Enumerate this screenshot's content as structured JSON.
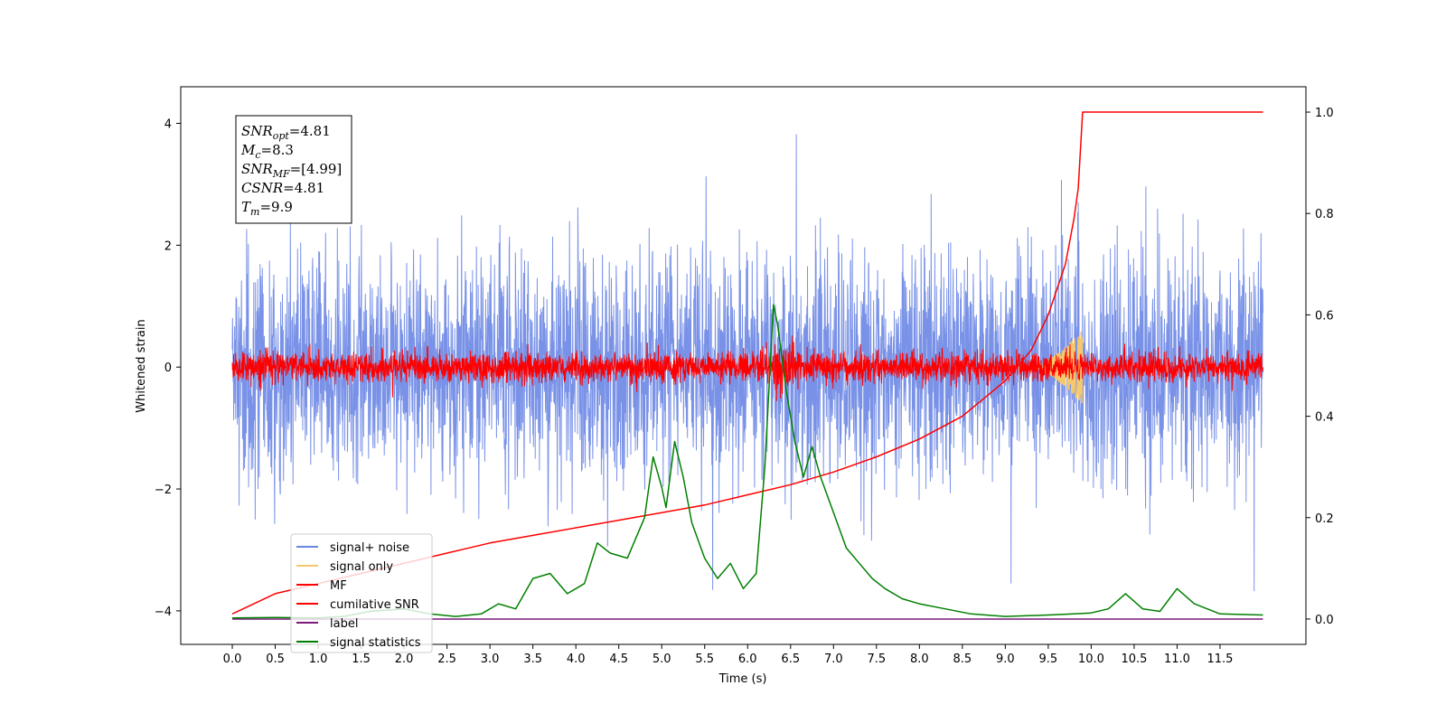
{
  "chart_data": {
    "type": "line",
    "xlabel": "Time (s)",
    "ylabel": "Whitened strain",
    "xlim": [
      -0.6,
      12.5
    ],
    "ylim": [
      -4.55,
      4.6
    ],
    "y2lim": [
      -0.05,
      1.05
    ],
    "x_ticks": [
      "0.0",
      "0.5",
      "1.0",
      "1.5",
      "2.0",
      "2.5",
      "3.0",
      "3.5",
      "4.0",
      "4.5",
      "5.0",
      "5.5",
      "6.0",
      "6.5",
      "7.0",
      "7.5",
      "8.0",
      "8.5",
      "9.0",
      "9.5",
      "10.0",
      "10.5",
      "11.0",
      "11.5"
    ],
    "y_ticks": [
      "−4",
      "−2",
      "0",
      "2",
      "4"
    ],
    "y2_ticks": [
      "0.0",
      "0.2",
      "0.4",
      "0.6",
      "0.8",
      "1.0"
    ],
    "grid": false,
    "legend_position": "lower-left",
    "annotation": {
      "lines": [
        {
          "var": "SNR",
          "sub": "opt",
          "value": "=4.81"
        },
        {
          "var": "M",
          "sub": "c",
          "value": "=8.3"
        },
        {
          "var": "SNR",
          "sub": "MF",
          "value": "=[4.99]"
        },
        {
          "var": "CSNR",
          "sub": "",
          "value": "=4.81"
        },
        {
          "var": "T",
          "sub": "m",
          "value": "=9.9"
        }
      ]
    },
    "series": [
      {
        "name": "signal+ noise",
        "color": "#6a86e4",
        "axis": "left",
        "kind": "noise",
        "envelope": [
          -2.4,
          2.4
        ],
        "t_range": [
          0.0,
          12.0
        ]
      },
      {
        "name": "signal only",
        "color": "#f5c86b",
        "axis": "left",
        "kind": "chirp",
        "t_range": [
          9.3,
          9.9
        ],
        "peak": 0.6
      },
      {
        "name": "MF",
        "color": "#ff0000",
        "axis": "left",
        "kind": "noise",
        "envelope": [
          -0.35,
          0.4
        ],
        "t_range": [
          0.0,
          12.0
        ]
      },
      {
        "name": "cumilative SNR",
        "color": "#ff0000",
        "axis": "right",
        "x": [
          0.0,
          0.5,
          1.0,
          1.5,
          2.0,
          2.5,
          3.0,
          3.5,
          4.0,
          4.5,
          5.0,
          5.5,
          6.0,
          6.5,
          7.0,
          7.5,
          8.0,
          8.5,
          9.0,
          9.3,
          9.5,
          9.7,
          9.8,
          9.85,
          9.9,
          12.0
        ],
        "values": [
          0.01,
          0.05,
          0.07,
          0.09,
          0.11,
          0.13,
          0.15,
          0.165,
          0.18,
          0.195,
          0.21,
          0.225,
          0.245,
          0.265,
          0.29,
          0.32,
          0.355,
          0.4,
          0.47,
          0.53,
          0.6,
          0.7,
          0.79,
          0.85,
          1.0,
          1.0
        ]
      },
      {
        "name": "label",
        "color": "#7b1a7b",
        "axis": "right",
        "x": [
          0.0,
          12.0
        ],
        "values": [
          0.0,
          0.0
        ]
      },
      {
        "name": "signal statistics",
        "color": "#008000",
        "axis": "right",
        "x": [
          0.0,
          0.5,
          1.0,
          1.3,
          1.6,
          2.0,
          2.3,
          2.6,
          2.9,
          3.1,
          3.3,
          3.5,
          3.7,
          3.9,
          4.1,
          4.25,
          4.4,
          4.6,
          4.8,
          4.9,
          5.0,
          5.05,
          5.15,
          5.25,
          5.35,
          5.5,
          5.65,
          5.8,
          5.95,
          6.1,
          6.2,
          6.3,
          6.35,
          6.45,
          6.55,
          6.65,
          6.75,
          6.85,
          7.0,
          7.15,
          7.3,
          7.45,
          7.6,
          7.8,
          8.0,
          8.3,
          8.6,
          9.0,
          9.5,
          9.8,
          10.0,
          10.2,
          10.4,
          10.6,
          10.8,
          11.0,
          11.2,
          11.5,
          12.0
        ],
        "values": [
          0.002,
          0.003,
          0.002,
          0.005,
          0.015,
          0.02,
          0.01,
          0.005,
          0.01,
          0.03,
          0.02,
          0.08,
          0.09,
          0.05,
          0.07,
          0.15,
          0.13,
          0.12,
          0.2,
          0.32,
          0.26,
          0.22,
          0.35,
          0.28,
          0.19,
          0.12,
          0.08,
          0.11,
          0.06,
          0.09,
          0.3,
          0.62,
          0.58,
          0.45,
          0.35,
          0.28,
          0.34,
          0.28,
          0.21,
          0.14,
          0.11,
          0.08,
          0.06,
          0.04,
          0.03,
          0.02,
          0.01,
          0.005,
          0.008,
          0.01,
          0.012,
          0.02,
          0.05,
          0.02,
          0.015,
          0.06,
          0.03,
          0.01,
          0.008
        ]
      }
    ]
  }
}
